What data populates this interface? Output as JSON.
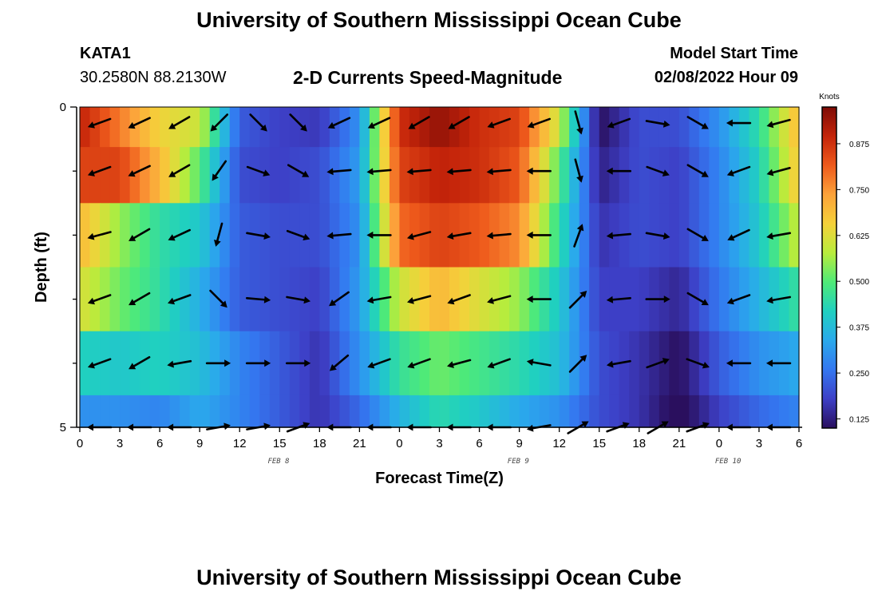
{
  "header": {
    "title": "University of Southern Mississippi Ocean Cube",
    "station": "KATA1",
    "coordinates": "30.2580N  88.2130W",
    "chart_title": "2-D Currents Speed-Magnitude",
    "model_start_label": "Model Start Time",
    "model_start_value": "02/08/2022 Hour 09"
  },
  "footer": {
    "title": "University of Southern Mississippi Ocean Cube"
  },
  "colors": {
    "scale": [
      "#2a0f5e",
      "#3d3fc6",
      "#3477f0",
      "#2aa9ec",
      "#20d0c0",
      "#4fea78",
      "#b8ec3c",
      "#f5d13a",
      "#fca23a",
      "#ee5a1c",
      "#c4240a",
      "#7d0b06"
    ]
  },
  "chart_data": {
    "type": "heatmap",
    "title": "2-D Currents Speed-Magnitude",
    "xlabel": "Forecast Time(Z)",
    "ylabel": "Depth (ft)",
    "x_tick_labels": [
      "0",
      "3",
      "6",
      "9",
      "12",
      "15",
      "18",
      "21",
      "0",
      "3",
      "6",
      "9",
      "12",
      "15",
      "18",
      "21",
      "0",
      "3",
      "6"
    ],
    "x_date_labels": [
      {
        "label": "FEB 8",
        "hour": 19.5
      },
      {
        "label": "FEB 9",
        "hour": 43.5
      },
      {
        "label": "FEB 10",
        "hour": 64.5
      }
    ],
    "x_range_hours": [
      0,
      54
    ],
    "y_tick_labels": [
      "0",
      "5"
    ],
    "ylim": [
      0,
      5
    ],
    "colorbar": {
      "label": "Knots",
      "tick_labels": [
        "0.125",
        "0.250",
        "0.375",
        "0.500",
        "0.625",
        "0.750",
        "0.875"
      ],
      "range": [
        0.1,
        0.975
      ]
    },
    "depth_rows": [
      0.25,
      1.0,
      2.0,
      3.0,
      4.0,
      5.0
    ],
    "time_hours": [
      0,
      3,
      6,
      9,
      12,
      15,
      18,
      21,
      24,
      27,
      30,
      33,
      36,
      39,
      42,
      45,
      48,
      51,
      54
    ],
    "speed_knots": [
      [
        0.9,
        0.78,
        0.65,
        0.6,
        0.22,
        0.18,
        0.17,
        0.3,
        0.88,
        0.95,
        0.88,
        0.85,
        0.6,
        0.1,
        0.2,
        0.2,
        0.3,
        0.45,
        0.7
      ],
      [
        0.85,
        0.85,
        0.7,
        0.5,
        0.2,
        0.18,
        0.2,
        0.32,
        0.85,
        0.9,
        0.88,
        0.82,
        0.5,
        0.13,
        0.2,
        0.18,
        0.28,
        0.42,
        0.68
      ],
      [
        0.7,
        0.55,
        0.45,
        0.4,
        0.22,
        0.2,
        0.2,
        0.3,
        0.8,
        0.85,
        0.82,
        0.76,
        0.45,
        0.16,
        0.2,
        0.18,
        0.28,
        0.4,
        0.6
      ],
      [
        0.62,
        0.52,
        0.45,
        0.35,
        0.22,
        0.2,
        0.18,
        0.32,
        0.6,
        0.7,
        0.62,
        0.55,
        0.4,
        0.18,
        0.18,
        0.14,
        0.26,
        0.36,
        0.46
      ],
      [
        0.42,
        0.4,
        0.42,
        0.38,
        0.28,
        0.22,
        0.16,
        0.3,
        0.46,
        0.52,
        0.48,
        0.44,
        0.38,
        0.2,
        0.16,
        0.1,
        0.22,
        0.3,
        0.34
      ],
      [
        0.3,
        0.3,
        0.28,
        0.34,
        0.28,
        0.22,
        0.16,
        0.24,
        0.36,
        0.44,
        0.4,
        0.34,
        0.3,
        0.2,
        0.16,
        0.08,
        0.18,
        0.24,
        0.28
      ]
    ],
    "direction_deg": [
      [
        250,
        245,
        240,
        225,
        135,
        135,
        245,
        245,
        240,
        240,
        250,
        250,
        165,
        250,
        100,
        120,
        270,
        255,
        245
      ],
      [
        250,
        245,
        240,
        215,
        110,
        120,
        265,
        265,
        265,
        265,
        265,
        270,
        165,
        270,
        110,
        120,
        250,
        255,
        250
      ],
      [
        255,
        240,
        245,
        195,
        100,
        110,
        265,
        270,
        255,
        260,
        265,
        270,
        20,
        265,
        100,
        120,
        245,
        260,
        260
      ],
      [
        250,
        240,
        250,
        135,
        95,
        100,
        235,
        260,
        255,
        250,
        255,
        270,
        45,
        265,
        90,
        120,
        250,
        260,
        250
      ],
      [
        250,
        240,
        260,
        90,
        90,
        90,
        230,
        250,
        250,
        255,
        250,
        280,
        45,
        260,
        70,
        110,
        270,
        270,
        270
      ],
      [
        270,
        270,
        270,
        80,
        80,
        70,
        270,
        270,
        270,
        270,
        270,
        260,
        60,
        70,
        60,
        70,
        270,
        270,
        270
      ]
    ]
  }
}
